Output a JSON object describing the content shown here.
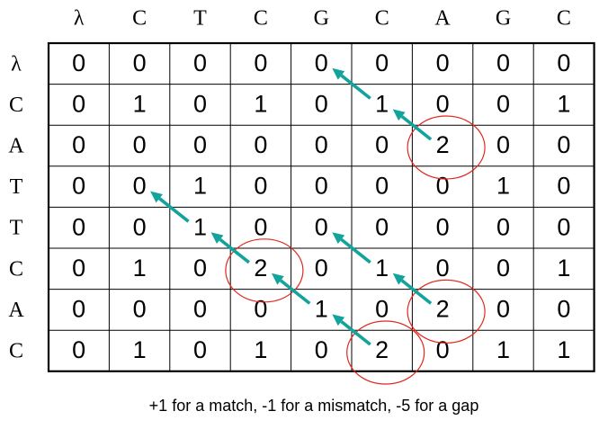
{
  "column_headers": [
    "λ",
    "C",
    "T",
    "C",
    "G",
    "C",
    "A",
    "G",
    "C"
  ],
  "row_headers": [
    "λ",
    "C",
    "A",
    "T",
    "T",
    "C",
    "A",
    "C"
  ],
  "matrix": [
    [
      0,
      0,
      0,
      0,
      0,
      0,
      0,
      0,
      0
    ],
    [
      0,
      1,
      0,
      1,
      0,
      1,
      0,
      0,
      1
    ],
    [
      0,
      0,
      0,
      0,
      0,
      0,
      2,
      0,
      0
    ],
    [
      0,
      0,
      1,
      0,
      0,
      0,
      0,
      1,
      0
    ],
    [
      0,
      0,
      1,
      0,
      0,
      0,
      0,
      0,
      0
    ],
    [
      0,
      1,
      0,
      2,
      0,
      1,
      0,
      0,
      1
    ],
    [
      0,
      0,
      0,
      0,
      1,
      0,
      2,
      0,
      0
    ],
    [
      0,
      1,
      0,
      1,
      0,
      2,
      0,
      1,
      1
    ]
  ],
  "highlighted_cells": [
    [
      2,
      6
    ],
    [
      5,
      3
    ],
    [
      6,
      6
    ],
    [
      7,
      5
    ]
  ],
  "traceback_arrows": [
    {
      "from": [
        2,
        6
      ],
      "to": [
        1,
        5
      ]
    },
    {
      "from": [
        1,
        5
      ],
      "to": [
        0,
        4
      ]
    },
    {
      "from": [
        5,
        3
      ],
      "to": [
        4,
        2
      ]
    },
    {
      "from": [
        4,
        2
      ],
      "to": [
        3,
        1
      ]
    },
    {
      "from": [
        7,
        5
      ],
      "to": [
        6,
        4
      ]
    },
    {
      "from": [
        6,
        4
      ],
      "to": [
        5,
        3
      ]
    },
    {
      "from": [
        6,
        6
      ],
      "to": [
        5,
        5
      ]
    },
    {
      "from": [
        5,
        5
      ],
      "to": [
        4,
        4
      ]
    }
  ],
  "colors": {
    "arrow": "#12a39c",
    "circle": "#e0281e",
    "grid": "#000000"
  },
  "caption": "+1 for a match, -1 for a mismatch, -5 for a gap"
}
